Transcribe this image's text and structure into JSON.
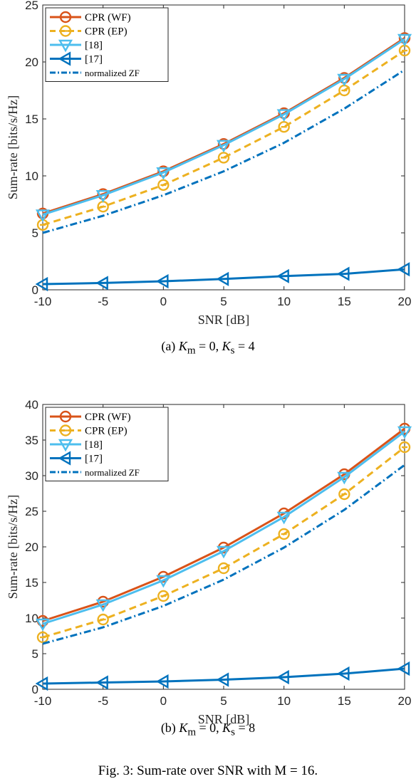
{
  "figure_caption": "Fig. 3: Sum-rate over SNR with M = 16.",
  "chart_data": [
    {
      "type": "line",
      "caption_label": "(a)",
      "caption_text": "K_m = 0, K_s = 4",
      "caption_parts": [
        "(a)  ",
        "K",
        "m",
        " = 0, ",
        "K",
        "s",
        " = 4"
      ],
      "xlabel": "SNR [dB]",
      "ylabel": "Sum-rate [bits/s/Hz]",
      "x": [
        -10,
        -5,
        0,
        5,
        10,
        15,
        20
      ],
      "xticks": [
        "-10",
        "-5",
        "0",
        "5",
        "10",
        "15",
        "20"
      ],
      "yticks": [
        "0",
        "5",
        "10",
        "15",
        "20",
        "25"
      ],
      "xlim": [
        -10,
        20
      ],
      "ylim": [
        0,
        25
      ],
      "legend_position": "top-left",
      "series": [
        {
          "name": "CPR (WF)",
          "values": [
            6.7,
            8.4,
            10.4,
            12.8,
            15.5,
            18.6,
            22.1
          ],
          "color": "#d95319",
          "marker": "circle",
          "dash": "solid"
        },
        {
          "name": "CPR (EP)",
          "values": [
            5.7,
            7.3,
            9.2,
            11.6,
            14.3,
            17.5,
            21.0
          ],
          "color": "#edb120",
          "marker": "circle-minus",
          "dash": "dashed"
        },
        {
          "name": "[18]",
          "values": [
            6.6,
            8.3,
            10.3,
            12.7,
            15.4,
            18.5,
            22.0
          ],
          "color": "#4dbeee",
          "marker": "triangle-down",
          "dash": "solid"
        },
        {
          "name": "[17]",
          "values": [
            0.5,
            0.6,
            0.75,
            0.95,
            1.2,
            1.4,
            1.8
          ],
          "color": "#0072bd",
          "marker": "triangle-left",
          "dash": "solid"
        },
        {
          "name": "normalized ZF",
          "values": [
            5.0,
            6.5,
            8.3,
            10.4,
            12.9,
            15.9,
            19.3
          ],
          "color": "#0072bd",
          "marker": "none",
          "dash": "dashdot"
        }
      ]
    },
    {
      "type": "line",
      "caption_label": "(b)",
      "caption_text": "K_m = 0, K_s = 8",
      "caption_parts": [
        "(b)  ",
        "K",
        "m",
        " = 0, ",
        "K",
        "s",
        " = 8"
      ],
      "xlabel": "SNR [dB]",
      "ylabel": "Sum-rate [bits/s/Hz]",
      "x": [
        -10,
        -5,
        0,
        5,
        10,
        15,
        20
      ],
      "xticks": [
        "-10",
        "-5",
        "0",
        "5",
        "10",
        "15",
        "20"
      ],
      "yticks": [
        "0",
        "5",
        "10",
        "15",
        "20",
        "25",
        "30",
        "35",
        "40"
      ],
      "xlim": [
        -10,
        20
      ],
      "ylim": [
        0,
        40
      ],
      "legend_position": "top-left",
      "series": [
        {
          "name": "CPR (WF)",
          "values": [
            9.6,
            12.3,
            15.8,
            19.9,
            24.7,
            30.2,
            36.6
          ],
          "color": "#d95319",
          "marker": "circle",
          "dash": "solid"
        },
        {
          "name": "CPR (EP)",
          "values": [
            7.3,
            9.8,
            13.1,
            17.0,
            21.8,
            27.4,
            34.0
          ],
          "color": "#edb120",
          "marker": "circle-minus",
          "dash": "dashed"
        },
        {
          "name": "[18]",
          "values": [
            9.2,
            11.9,
            15.3,
            19.4,
            24.2,
            29.8,
            36.2
          ],
          "color": "#4dbeee",
          "marker": "triangle-down",
          "dash": "solid"
        },
        {
          "name": "[17]",
          "values": [
            0.8,
            0.95,
            1.1,
            1.35,
            1.7,
            2.2,
            2.9
          ],
          "color": "#0072bd",
          "marker": "triangle-left",
          "dash": "solid"
        },
        {
          "name": "normalized ZF",
          "values": [
            6.4,
            8.7,
            11.7,
            15.4,
            19.9,
            25.2,
            31.5
          ],
          "color": "#0072bd",
          "marker": "none",
          "dash": "dashdot"
        }
      ]
    }
  ]
}
